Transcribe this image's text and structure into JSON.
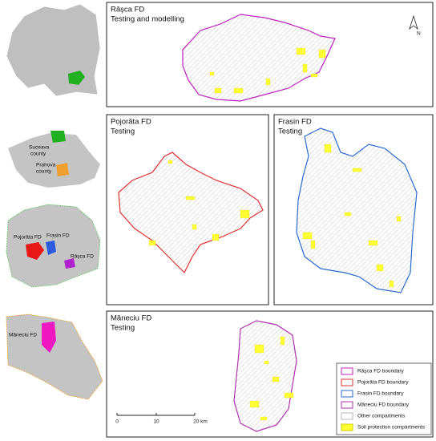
{
  "panels": [
    {
      "title": "Râşca FD",
      "subtitle": "Testing and modelling"
    },
    {
      "title": "Pojorâta FD",
      "subtitle": "Testing"
    },
    {
      "title": "Frasin FD",
      "subtitle": "Testing"
    },
    {
      "title": "Mâneciu FD",
      "subtitle": "Testing"
    }
  ],
  "north": "N",
  "insets": {
    "romania": {
      "suceava": [
        "Suceava",
        "county"
      ],
      "prahova": [
        "Prahova",
        "county"
      ]
    },
    "suceava": {
      "pojorata": "Pojorâta FD",
      "frasin": "Frasin FD",
      "rasca": "Râşca FD"
    },
    "prahova": {
      "maneciu": "Mâneciu FD"
    }
  },
  "legend": [
    "Râşca FD boundary",
    "Pojorâta FD boundary",
    "Frasin FD boundary",
    "Mâneciu FD boundary",
    "Other compartments",
    "Soil protection compartments"
  ],
  "scale_bar": [
    "0",
    "10",
    "20 km"
  ]
}
